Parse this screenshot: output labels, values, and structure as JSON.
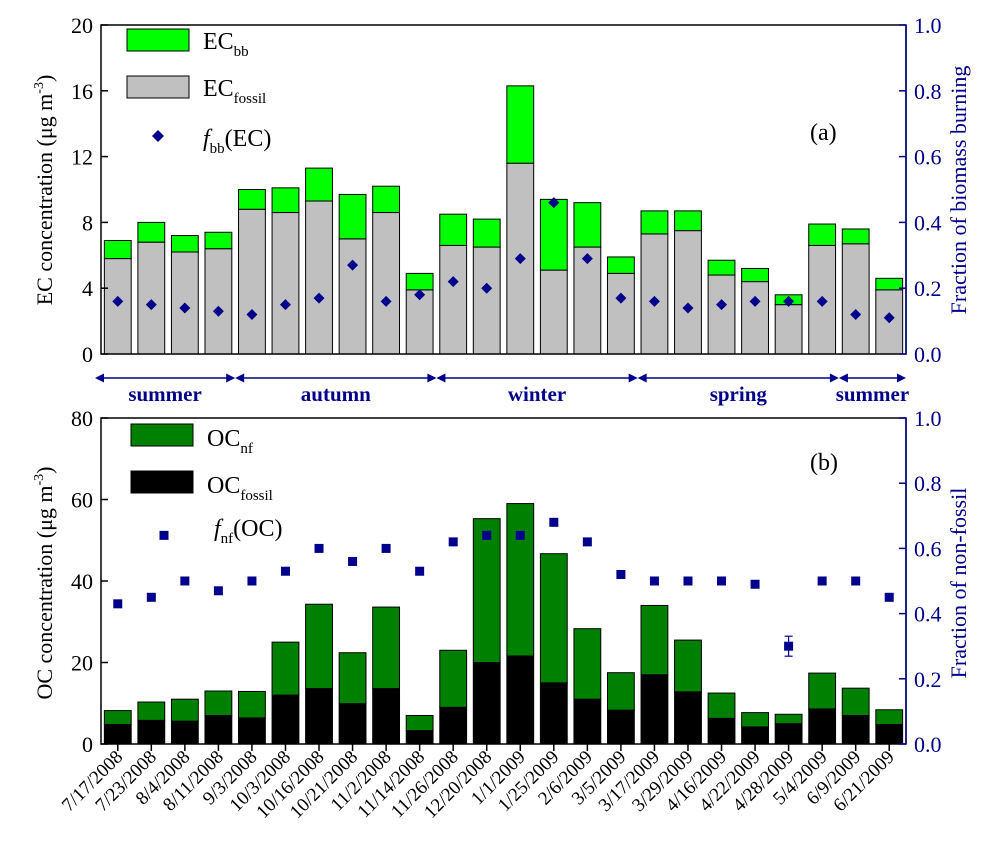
{
  "chart_data": [
    {
      "panel": "(a)",
      "type": "bar",
      "stacked": true,
      "categories": [
        "7/17/2008",
        "7/23/2008",
        "8/4/2008",
        "8/11/2008",
        "9/3/2008",
        "10/3/2008",
        "10/16/2008",
        "10/21/2008",
        "11/2/2008",
        "11/14/2008",
        "11/26/2008",
        "12/20/2008",
        "1/1/2009",
        "1/25/2009",
        "2/6/2009",
        "3/5/2009",
        "3/17/2009",
        "3/29/2009",
        "4/16/2009",
        "4/22/2009",
        "4/28/2009",
        "5/4/2009",
        "6/9/2009",
        "6/21/2009"
      ],
      "ylabel": "EC concentration (μg m-3)",
      "ylabel_parts": {
        "main": "EC concentration (μg m",
        "sup": "-3",
        "close": ")"
      },
      "ylim": [
        0,
        20
      ],
      "yticks": [
        0,
        4,
        8,
        12,
        16,
        20
      ],
      "y2label": "Fraction of biomass burning",
      "y2lim": [
        0,
        1.0
      ],
      "y2ticks": [
        "0.0",
        "0.2",
        "0.4",
        "0.6",
        "0.8",
        "1.0"
      ],
      "series": [
        {
          "name": "EC_fossil",
          "label_main": "EC",
          "label_sub": "fossil",
          "color": "#c0c0c0",
          "values": [
            5.8,
            6.8,
            6.2,
            6.4,
            8.8,
            8.6,
            9.3,
            7.0,
            8.6,
            3.9,
            6.6,
            6.5,
            11.6,
            5.1,
            6.5,
            4.9,
            7.3,
            7.5,
            4.8,
            4.4,
            3.0,
            6.6,
            6.7,
            3.9
          ]
        },
        {
          "name": "EC_bb",
          "label_main": "EC",
          "label_sub": "bb",
          "color": "#00ff00",
          "values": [
            1.1,
            1.2,
            1.0,
            1.0,
            1.2,
            1.5,
            2.0,
            2.7,
            1.6,
            1.0,
            1.9,
            1.7,
            4.7,
            4.3,
            2.7,
            1.0,
            1.4,
            1.2,
            0.9,
            0.8,
            0.6,
            1.3,
            0.9,
            0.7
          ]
        },
        {
          "name": "f_bb(EC)",
          "label_main": "f",
          "label_sub": "bb",
          "label_tail": "(EC)",
          "axis": "right",
          "marker": "diamond",
          "color": "#00008b",
          "values": [
            0.16,
            0.15,
            0.14,
            0.13,
            0.12,
            0.15,
            0.17,
            0.27,
            0.16,
            0.18,
            0.22,
            0.2,
            0.29,
            0.46,
            0.29,
            0.17,
            0.16,
            0.14,
            0.15,
            0.16,
            0.16,
            0.16,
            0.12,
            0.11
          ]
        }
      ],
      "seasons": [
        {
          "label": "summer",
          "from": 0,
          "to": 3
        },
        {
          "label": "autumn",
          "from": 4,
          "to": 9
        },
        {
          "label": "winter",
          "from": 10,
          "to": 15
        },
        {
          "label": "spring",
          "from": 16,
          "to": 21
        },
        {
          "label": "summer",
          "from": 22,
          "to": 23
        }
      ]
    },
    {
      "panel": "(b)",
      "type": "bar",
      "stacked": true,
      "categories": [
        "7/17/2008",
        "7/23/2008",
        "8/4/2008",
        "8/11/2008",
        "9/3/2008",
        "10/3/2008",
        "10/16/2008",
        "10/21/2008",
        "11/2/2008",
        "11/14/2008",
        "11/26/2008",
        "12/20/2008",
        "1/1/2009",
        "1/25/2009",
        "2/6/2009",
        "3/5/2009",
        "3/17/2009",
        "3/29/2009",
        "4/16/2009",
        "4/22/2009",
        "4/28/2009",
        "5/4/2009",
        "6/9/2009",
        "6/21/2009"
      ],
      "ylabel": "OC concentration (μg m-3)",
      "ylabel_parts": {
        "main": "OC concentration (μg m",
        "sup": "-3",
        "close": ")"
      },
      "ylim": [
        0,
        80
      ],
      "yticks": [
        0,
        20,
        40,
        60,
        80
      ],
      "y2label": "Fraction of non-fossil",
      "y2lim": [
        0,
        1.0
      ],
      "y2ticks": [
        "0.0",
        "0.2",
        "0.4",
        "0.6",
        "0.8",
        "1.0"
      ],
      "series": [
        {
          "name": "OC_fossil",
          "label_main": "OC",
          "label_sub": "fossil",
          "color": "#000000",
          "values": [
            4.8,
            5.8,
            5.6,
            7.0,
            6.4,
            12.0,
            13.6,
            9.9,
            13.6,
            3.3,
            9.0,
            20.0,
            21.6,
            15.0,
            11.0,
            8.3,
            17.0,
            12.8,
            6.3,
            4.2,
            5.0,
            8.6,
            7.0,
            4.8
          ]
        },
        {
          "name": "OC_nf",
          "label_main": "OC",
          "label_sub": "nf",
          "color": "#008000",
          "values": [
            3.4,
            4.5,
            5.4,
            6.0,
            6.5,
            13.0,
            20.7,
            12.5,
            20.0,
            3.7,
            14.0,
            35.3,
            37.4,
            31.7,
            17.3,
            9.2,
            17.0,
            12.7,
            6.2,
            3.5,
            2.3,
            8.8,
            6.7,
            3.6
          ]
        },
        {
          "name": "f_nf(OC)",
          "label_main": "f",
          "label_sub": "nf",
          "label_tail": "(OC)",
          "axis": "right",
          "marker": "square",
          "color": "#00008b",
          "values": [
            0.43,
            0.45,
            0.5,
            0.47,
            0.5,
            0.53,
            0.6,
            0.56,
            0.6,
            0.53,
            0.62,
            0.64,
            0.64,
            0.68,
            0.62,
            0.52,
            0.5,
            0.5,
            0.5,
            0.49,
            0.3,
            0.5,
            0.5,
            0.45
          ]
        }
      ],
      "legend_extra_marker_value": 0.64
    }
  ]
}
